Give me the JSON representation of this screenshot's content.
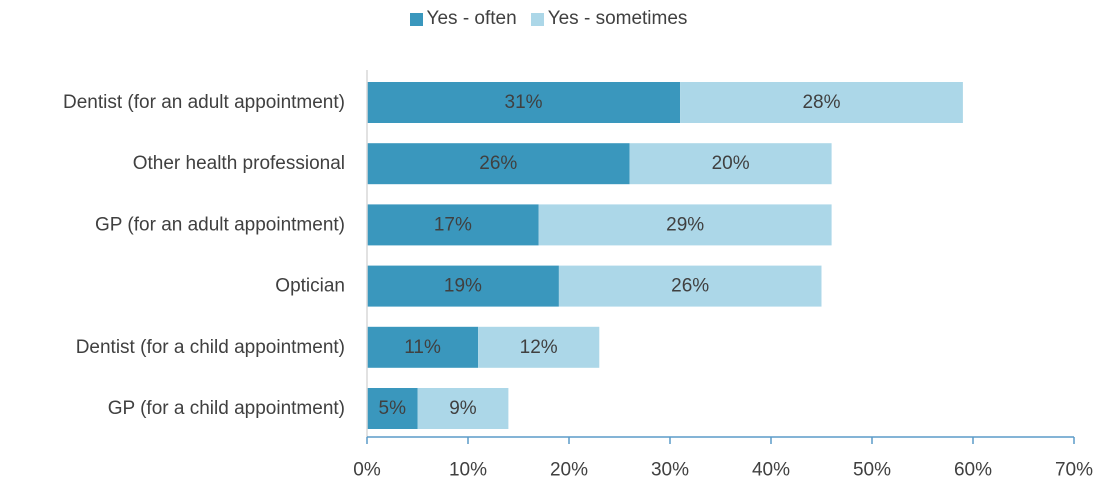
{
  "chart_data": {
    "type": "bar",
    "orientation": "horizontal",
    "stacked": true,
    "categories": [
      "Dentist (for an adult appointment)",
      "Other health professional",
      "GP (for an adult appointment)",
      "Optician",
      "Dentist (for a child appointment)",
      "GP (for a child appointment)"
    ],
    "series": [
      {
        "name": "Yes - often",
        "values": [
          31,
          26,
          17,
          19,
          11,
          5
        ],
        "labels": [
          "31%",
          "26%",
          "17%",
          "19%",
          "11%",
          "5%"
        ],
        "color": "#3a97bd"
      },
      {
        "name": "Yes - sometimes",
        "values": [
          28,
          20,
          29,
          26,
          12,
          9
        ],
        "labels": [
          "28%",
          "20%",
          "29%",
          "26%",
          "12%",
          "9%"
        ],
        "color": "#acd7e8"
      }
    ],
    "xlim": [
      0,
      70
    ],
    "xticks": [
      0,
      10,
      20,
      30,
      40,
      50,
      60,
      70
    ],
    "xtick_labels": [
      "0%",
      "10%",
      "20%",
      "30%",
      "40%",
      "50%",
      "60%",
      "70%"
    ],
    "legend_position": "top",
    "grid": false,
    "axis_color": "#5b9bc8",
    "text_color": "#404040"
  }
}
